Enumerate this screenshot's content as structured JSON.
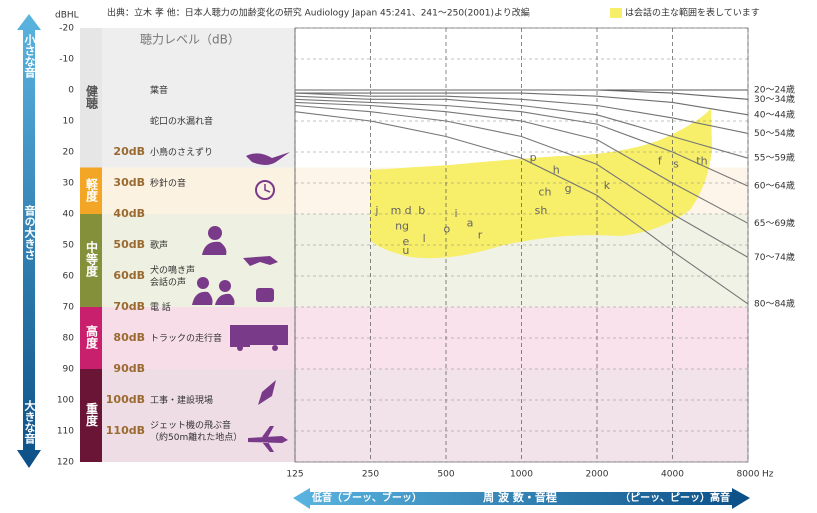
{
  "source": "出典：立木 孝 他：日本人聴力の加齢変化の研究 Audiology Japan 45:241、241～250(2001)より改編",
  "legend_text": "は会話の主な範囲を表しています",
  "left_arrow": {
    "top": "小さな音",
    "middle": "音の大きさ",
    "bottom": "大きな音"
  },
  "bottom_arrow": {
    "left": "低音（ブーッ、ブーッ）",
    "middle": "周 波 数・音程",
    "right": "（ピーッ、ピーッ）高音"
  },
  "panel": {
    "title": "聴力レベル（dB）",
    "categories": [
      {
        "label": "健聴",
        "from": -20,
        "to": 25,
        "color": "#e6e6e6",
        "text_color": "#555",
        "bg": "#eeeeee",
        "chart_bg": "#ffffff"
      },
      {
        "label": "軽度",
        "from": 25,
        "to": 40,
        "color": "#f3a526",
        "text_color": "#fff",
        "bg": "#fcf2e2",
        "chart_bg": "#fdf5ea"
      },
      {
        "label": "中等度",
        "from": 40,
        "to": 70,
        "color": "#85913a",
        "text_color": "#fff",
        "bg": "#eef0e1",
        "chart_bg": "#f0f2e6"
      },
      {
        "label": "高度",
        "from": 70,
        "to": 90,
        "color": "#c9206d",
        "text_color": "#fff",
        "bg": "#f7dde8",
        "chart_bg": "#f9e2ec"
      },
      {
        "label": "重度",
        "from": 90,
        "to": 120,
        "color": "#6a1536",
        "text_color": "#fff",
        "bg": "#efdde5",
        "chart_bg": "#f2e3ea"
      }
    ],
    "sounds": [
      {
        "db": 0,
        "text": "葉音"
      },
      {
        "db": 10,
        "text": "蛇口の水漏れ音"
      },
      {
        "db": 20,
        "level": "20dB",
        "text": "小鳥のさえずり"
      },
      {
        "db": 30,
        "level": "30dB",
        "text": "秒針の音"
      },
      {
        "db": 40,
        "level": "40dB"
      },
      {
        "db": 50,
        "level": "50dB",
        "text": "歌声"
      },
      {
        "db": 60,
        "level": "60dB",
        "text": "犬の鳴き声\n会話の声"
      },
      {
        "db": 70,
        "level": "70dB",
        "text": "電 話"
      },
      {
        "db": 80,
        "level": "80dB",
        "text": "トラックの走行音"
      },
      {
        "db": 90,
        "level": "90dB"
      },
      {
        "db": 100,
        "level": "100dB",
        "text": "工事・建設現場"
      },
      {
        "db": 110,
        "level": "110dB",
        "text": "ジェット機の飛ぶ音\n（約50m離れた地点）"
      }
    ]
  },
  "chart_data": {
    "type": "line",
    "y_label": "dBHL",
    "x_unit": "Hz",
    "x_log": true,
    "y_inverted": true,
    "x": [
      125,
      250,
      500,
      1000,
      2000,
      4000,
      8000
    ],
    "xlim": [
      125,
      8000
    ],
    "xticks": [
      125,
      250,
      500,
      1000,
      2000,
      4000,
      8000
    ],
    "ylim": [
      -20,
      120
    ],
    "yticks": [
      -20,
      -10,
      0,
      10,
      20,
      30,
      40,
      50,
      60,
      70,
      80,
      90,
      100,
      110,
      120
    ],
    "grid": true,
    "speech_color": "#f7ee6a",
    "series": [
      {
        "name": "20～24歳",
        "color": "#555555",
        "values": [
          0,
          0,
          0,
          0,
          0,
          0,
          0
        ]
      },
      {
        "name": "30～34歳",
        "color": "#666666",
        "values": [
          0,
          0,
          0,
          0,
          0,
          1,
          3
        ]
      },
      {
        "name": "40～44歳",
        "color": "#6e6e6e",
        "values": [
          1,
          1,
          1,
          1,
          2,
          4,
          8
        ]
      },
      {
        "name": "50～54歳",
        "color": "#737373",
        "values": [
          1,
          2,
          2,
          3,
          5,
          9,
          14
        ]
      },
      {
        "name": "55～59歳",
        "color": "#777777",
        "values": [
          2,
          3,
          3,
          5,
          8,
          15,
          22
        ]
      },
      {
        "name": "60～64歳",
        "color": "#777777",
        "values": [
          3,
          4,
          5,
          7,
          11,
          20,
          31
        ]
      },
      {
        "name": "65～69歳",
        "color": "#777777",
        "values": [
          4,
          5,
          7,
          10,
          16,
          30,
          43
        ]
      },
      {
        "name": "70～74歳",
        "color": "#777777",
        "values": [
          5,
          7,
          10,
          15,
          24,
          40,
          54
        ]
      },
      {
        "name": "80～84歳",
        "color": "#777777",
        "values": [
          7,
          10,
          15,
          22,
          34,
          52,
          69
        ]
      }
    ],
    "phonemes": [
      {
        "label": "j",
        "x": 265,
        "y": 39
      },
      {
        "label": "m",
        "x": 316,
        "y": 39
      },
      {
        "label": "d",
        "x": 353,
        "y": 39
      },
      {
        "label": "b",
        "x": 400,
        "y": 39
      },
      {
        "label": "ng",
        "x": 334,
        "y": 44
      },
      {
        "label": "e",
        "x": 346,
        "y": 49
      },
      {
        "label": "u",
        "x": 346,
        "y": 52
      },
      {
        "label": "l",
        "x": 409,
        "y": 48
      },
      {
        "label": "o",
        "x": 504,
        "y": 45
      },
      {
        "label": "i",
        "x": 548,
        "y": 40
      },
      {
        "label": "a",
        "x": 623,
        "y": 43
      },
      {
        "label": "r",
        "x": 683,
        "y": 47
      },
      {
        "label": "p",
        "x": 1112,
        "y": 22
      },
      {
        "label": "h",
        "x": 1375,
        "y": 26
      },
      {
        "label": "ch",
        "x": 1240,
        "y": 33
      },
      {
        "label": "g",
        "x": 1535,
        "y": 32
      },
      {
        "label": "sh",
        "x": 1196,
        "y": 39
      },
      {
        "label": "k",
        "x": 2190,
        "y": 31
      },
      {
        "label": "f",
        "x": 3560,
        "y": 23
      },
      {
        "label": "s",
        "x": 4130,
        "y": 24
      },
      {
        "label": "th",
        "x": 5240,
        "y": 23
      }
    ]
  }
}
